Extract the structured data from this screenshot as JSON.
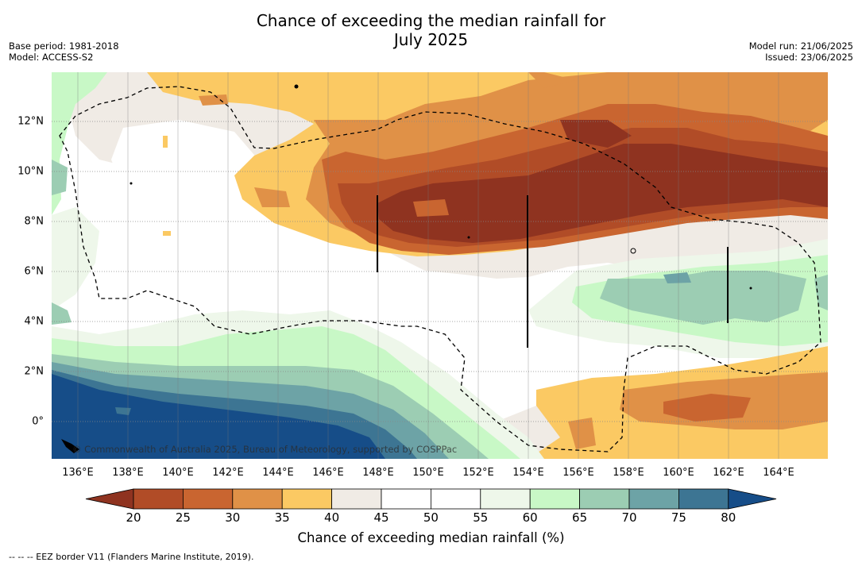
{
  "title_line1": "Chance of exceeding the median rainfall for",
  "title_line2": "July 2025",
  "base_period": "Base period: 1981-2018",
  "model": "Model: ACCESS-S2",
  "model_run": "Model run: 21/06/2025",
  "issued": "Issued: 23/06/2025",
  "copyright": "© Commonwealth of Australia 2025, Bureau of Meteorology, supported by COSPPac",
  "x_ticks": [
    "136°E",
    "138°E",
    "140°E",
    "142°E",
    "144°E",
    "146°E",
    "148°E",
    "150°E",
    "152°E",
    "154°E",
    "156°E",
    "158°E",
    "160°E",
    "162°E",
    "164°E"
  ],
  "y_ticks": [
    "12°N",
    "10°N",
    "8°N",
    "6°N",
    "4°N",
    "2°N",
    "0°"
  ],
  "colorbar": {
    "title": "Chance of exceeding median rainfall (%)",
    "labels": [
      "20",
      "25",
      "30",
      "35",
      "40",
      "45",
      "50",
      "55",
      "60",
      "65",
      "70",
      "75",
      "80"
    ],
    "colors": [
      "#b14c27",
      "#c96530",
      "#e09147",
      "#fbc963",
      "#f0ebe5",
      "#ffffff",
      "#ffffff",
      "#eef7ea",
      "#c8f8c6",
      "#9ccdb3",
      "#6da3a6",
      "#3d7593"
    ],
    "under_color": "#8f3320",
    "over_color": "#164d88"
  },
  "footnote": "--  --  -- EEZ border V11 (Flanders Marine Institute, 2019)."
}
